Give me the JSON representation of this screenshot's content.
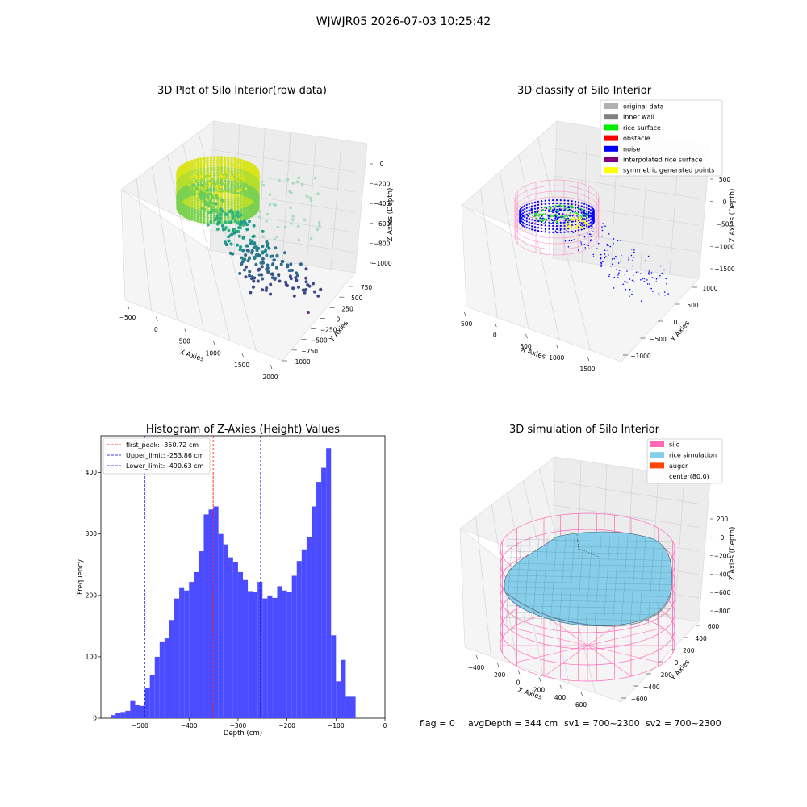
{
  "suptitle": "WJWJR05 2026-07-03 10:25:42",
  "footer": {
    "flag": "flag = 0",
    "avg": "avgDepth = 344 cm",
    "sv1": "sv1 = 700~2300",
    "sv2": "sv2 = 700~2300"
  },
  "colors": {
    "hist_bar": "#4b4bff",
    "peak_line": "#ff0000",
    "limit_line": "#0000cc",
    "silo": "#ff69b4",
    "rice": "#87ceeb",
    "auger": "#ff4500",
    "noise": "#0000ff",
    "rice_surface": "#00ee00",
    "symmetric": "#ffff00"
  },
  "chart_data": [
    {
      "type": "scatter",
      "title": "3D Plot of Silo Interior(row data)",
      "xlabel": "X Axies",
      "ylabel": "Y Axies",
      "zlabel": "Z Axies (Depth)",
      "x_ticks": [
        "−500",
        "0",
        "500",
        "1000",
        "1500",
        "2000"
      ],
      "y_ticks": [
        "750",
        "500",
        "250",
        "0",
        "−250",
        "−500",
        "−750",
        "−1000"
      ],
      "z_ticks": [
        "0",
        "−200",
        "−400",
        "−600",
        "−800",
        "−1000"
      ],
      "xlim": [
        -600,
        2000
      ],
      "ylim": [
        -1000,
        800
      ],
      "zlim": [
        -1100,
        0
      ]
    },
    {
      "type": "scatter",
      "title": "3D classify of Silo Interior",
      "xlabel": "X Axies",
      "ylabel": "Y Axies",
      "zlabel": "Z Axies (Depth)",
      "x_ticks": [
        "−500",
        "0",
        "500",
        "1000",
        "1500"
      ],
      "y_ticks": [
        "1000",
        "500",
        "0",
        "−500",
        "−1000"
      ],
      "z_ticks": [
        "500",
        "0",
        "−500",
        "−1000",
        "−1500"
      ],
      "xlim": [
        -600,
        1900
      ],
      "ylim": [
        -1000,
        1000
      ],
      "zlim": [
        -1500,
        500
      ],
      "legend_position": "top-right",
      "legend": [
        {
          "label": "original data",
          "color": "#b0b0b0"
        },
        {
          "label": "inner wall",
          "color": "#808080"
        },
        {
          "label": "rice surface",
          "color": "#00ee00"
        },
        {
          "label": "obstacle",
          "color": "#ff0000"
        },
        {
          "label": "noise",
          "color": "#0000ff"
        },
        {
          "label": "interpolated rice surface",
          "color": "#800080"
        },
        {
          "label": "symmetric generated points",
          "color": "#ffff00"
        }
      ]
    },
    {
      "type": "bar",
      "title": "Histogram of Z-Axies (Height) Values",
      "xlabel": "Depth (cm)",
      "ylabel": "Frequency",
      "xlim": [
        -580,
        0
      ],
      "ylim": [
        0,
        460
      ],
      "x_ticks": [
        -500,
        -400,
        -300,
        -200,
        -100,
        0
      ],
      "x_tick_labels": [
        "−500",
        "−400",
        "−300",
        "−200",
        "−100",
        "0"
      ],
      "y_ticks": [
        0,
        100,
        200,
        300,
        400
      ],
      "bin_width": 10,
      "bin_edges_start": -560,
      "values": [
        5,
        8,
        10,
        12,
        28,
        22,
        20,
        50,
        70,
        100,
        125,
        130,
        160,
        195,
        212,
        208,
        222,
        238,
        272,
        332,
        340,
        345,
        300,
        283,
        262,
        255,
        238,
        225,
        207,
        205,
        222,
        195,
        200,
        196,
        215,
        208,
        206,
        232,
        256,
        275,
        295,
        345,
        385,
        408,
        440,
        135,
        60,
        95,
        35,
        35
      ],
      "legend_position": "top-left",
      "lines": [
        {
          "label": "first_peak: -350.72 cm",
          "x": -350.72,
          "style": "red-dashed"
        },
        {
          "label": "Upper_limit: -253.86 cm",
          "x": -253.86,
          "style": "blue-dashed"
        },
        {
          "label": "Lower_limit: -490.63 cm",
          "x": -490.63,
          "style": "blue-dashed"
        }
      ]
    },
    {
      "type": "area",
      "title": "3D simulation of Silo Interior",
      "xlabel": "X Axies",
      "ylabel": "Y Axies",
      "zlabel": "Z Axies (Depth)",
      "x_ticks": [
        "−400",
        "−200",
        "0",
        "200",
        "400",
        "600"
      ],
      "y_ticks": [
        "600",
        "400",
        "200",
        "0",
        "−200",
        "−400",
        "−600"
      ],
      "z_ticks": [
        "200",
        "0",
        "−200",
        "−400",
        "−600",
        "−800"
      ],
      "xlim": [
        -500,
        700
      ],
      "ylim": [
        -650,
        650
      ],
      "zlim": [
        -850,
        300
      ],
      "legend_position": "top-right",
      "legend": [
        {
          "label": "silo",
          "color": "#ff69b4"
        },
        {
          "label": "rice simulation",
          "color": "#87ceeb"
        },
        {
          "label": "auger",
          "color": "#ff4500"
        },
        {
          "label": "center(80,0)",
          "color": ""
        }
      ]
    }
  ]
}
